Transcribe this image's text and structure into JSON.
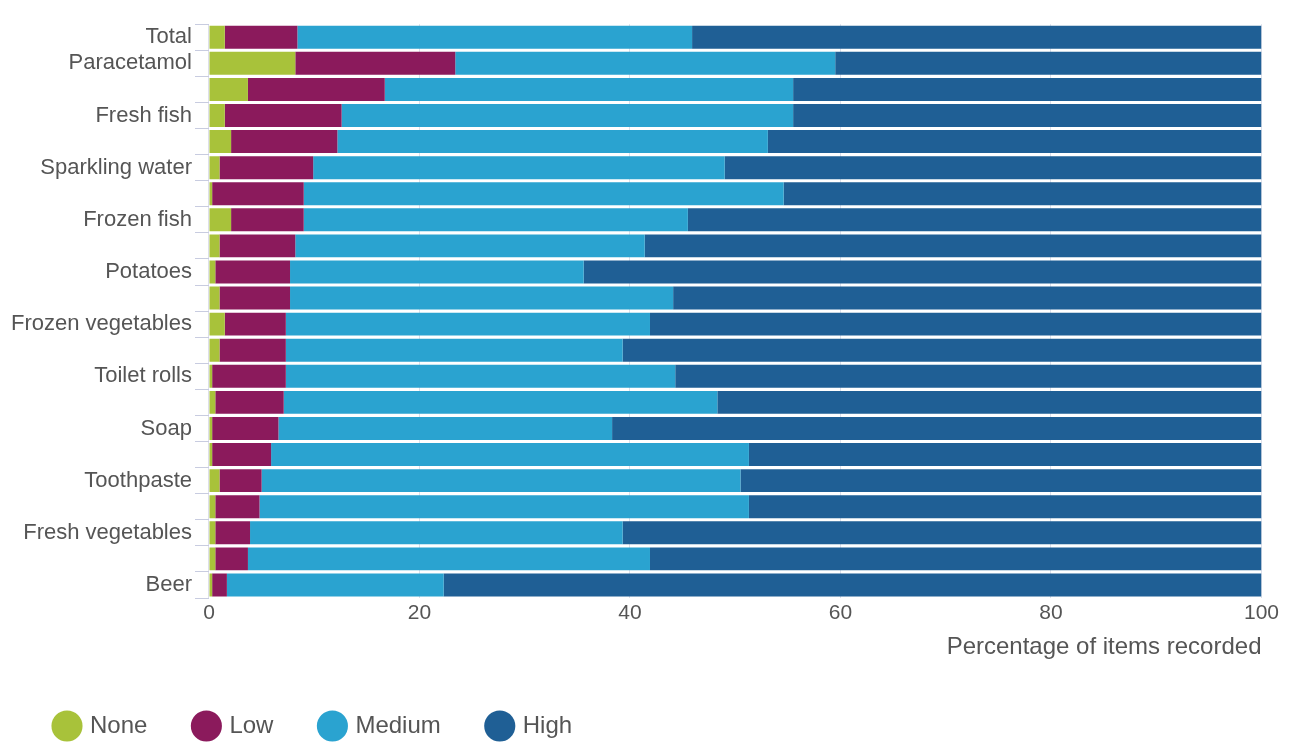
{
  "chart_data": {
    "type": "bar",
    "orientation": "horizontal",
    "stacked": true,
    "xlabel": "Percentage of items recorded",
    "categories": [
      "Total",
      "Paracetamol",
      null,
      "Fresh fish",
      null,
      "Sparkling water",
      null,
      "Frozen fish",
      null,
      "Potatoes",
      null,
      "Frozen vegetables",
      null,
      "Toilet rolls",
      null,
      "Soap",
      null,
      "Toothpaste",
      null,
      "Fresh vegetables",
      null,
      "Beer"
    ],
    "series": [
      {
        "name": "None",
        "color": "#a8c23a",
        "values": [
          1.5,
          8.2,
          3.7,
          1.5,
          2.1,
          1.0,
          0.3,
          2.1,
          1.0,
          0.6,
          1.0,
          1.5,
          1.0,
          0.3,
          0.6,
          0.3,
          0.3,
          1.0,
          0.6,
          0.6,
          0.6,
          0.3
        ]
      },
      {
        "name": "Low",
        "color": "#8b1a5c",
        "values": [
          6.9,
          15.2,
          13.0,
          11.1,
          10.1,
          8.9,
          8.7,
          6.9,
          7.2,
          7.1,
          6.7,
          5.8,
          6.3,
          7.0,
          6.5,
          6.3,
          5.6,
          4.0,
          4.2,
          3.3,
          3.1,
          1.4
        ]
      },
      {
        "name": "Medium",
        "color": "#2aa3d0",
        "values": [
          37.5,
          36.1,
          38.8,
          42.9,
          40.9,
          39.1,
          45.6,
          36.5,
          33.2,
          27.9,
          36.4,
          34.6,
          32.0,
          37.0,
          41.2,
          31.7,
          45.4,
          45.5,
          46.5,
          35.4,
          38.2,
          20.6
        ]
      },
      {
        "name": "High",
        "color": "#1f5f95",
        "values": [
          54.1,
          40.5,
          44.5,
          44.5,
          46.9,
          51.0,
          45.4,
          54.5,
          58.6,
          64.4,
          55.9,
          58.1,
          60.7,
          55.7,
          51.7,
          61.7,
          48.7,
          49.5,
          48.7,
          60.7,
          58.1,
          77.7
        ]
      }
    ],
    "xlim": [
      0,
      100
    ],
    "xticks": [
      0,
      20,
      40,
      60,
      80,
      100
    ],
    "grid": "x",
    "legend": "bottom left"
  }
}
